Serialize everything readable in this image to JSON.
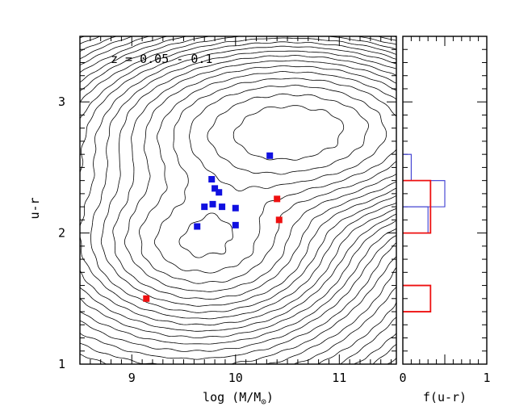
{
  "chart_data": [
    {
      "type": "scatter",
      "panel": "main",
      "annotation": "z = 0.05 - 0.1",
      "xlabel": "log (M/M",
      "xlabel_symbol": "⊙",
      "xlabel_close": ")",
      "ylabel": "u-r",
      "xlim": [
        8.5,
        11.55
      ],
      "ylim": [
        1.0,
        3.5
      ],
      "x_ticks": [
        9,
        10,
        11
      ],
      "x_tick_labels": [
        "9",
        "10",
        "11"
      ],
      "y_ticks": [
        1,
        2,
        3
      ],
      "y_tick_labels": [
        "1",
        "2",
        "3"
      ],
      "background": "density contours of galaxy population",
      "series": [
        {
          "name": "blue",
          "color": "#1010e0",
          "points": [
            [
              10.33,
              2.59
            ],
            [
              9.77,
              2.41
            ],
            [
              9.8,
              2.34
            ],
            [
              9.84,
              2.31
            ],
            [
              9.7,
              2.2
            ],
            [
              9.78,
              2.22
            ],
            [
              9.87,
              2.2
            ],
            [
              10.0,
              2.19
            ],
            [
              9.63,
              2.05
            ],
            [
              10.0,
              2.06
            ]
          ]
        },
        {
          "name": "red",
          "color": "#ee1010",
          "points": [
            [
              10.4,
              2.26
            ],
            [
              10.42,
              2.1
            ],
            [
              9.14,
              1.5
            ]
          ]
        }
      ],
      "contours": {
        "color": "#000000",
        "levels": 24,
        "components": [
          {
            "cx": 10.55,
            "cy": 2.78,
            "sx": 0.85,
            "sy": 0.32,
            "weight": 1.0
          },
          {
            "cx": 9.72,
            "cy": 1.92,
            "sx": 0.6,
            "sy": 0.3,
            "weight": 0.5
          },
          {
            "cx": 9.5,
            "cy": 2.1,
            "sx": 1.2,
            "sy": 0.7,
            "weight": 0.12
          }
        ]
      }
    },
    {
      "type": "histogram",
      "panel": "side",
      "xlabel": "f(u-r)",
      "xlim": [
        0,
        1
      ],
      "x_ticks": [
        0,
        1
      ],
      "x_tick_labels": [
        "0",
        "1"
      ],
      "ylim": [
        1.0,
        3.5
      ],
      "series": [
        {
          "name": "blue",
          "color": "#3a3ad0",
          "bins": [
            {
              "y0": 2.4,
              "y1": 2.6,
              "f": 0.1
            },
            {
              "y0": 2.2,
              "y1": 2.4,
              "f": 0.5
            },
            {
              "y0": 2.0,
              "y1": 2.2,
              "f": 0.3
            }
          ]
        },
        {
          "name": "red",
          "color": "#ee1010",
          "bins": [
            {
              "y0": 2.0,
              "y1": 2.4,
              "f": 0.33
            },
            {
              "y0": 1.4,
              "y1": 1.6,
              "f": 0.33
            }
          ]
        }
      ]
    }
  ]
}
